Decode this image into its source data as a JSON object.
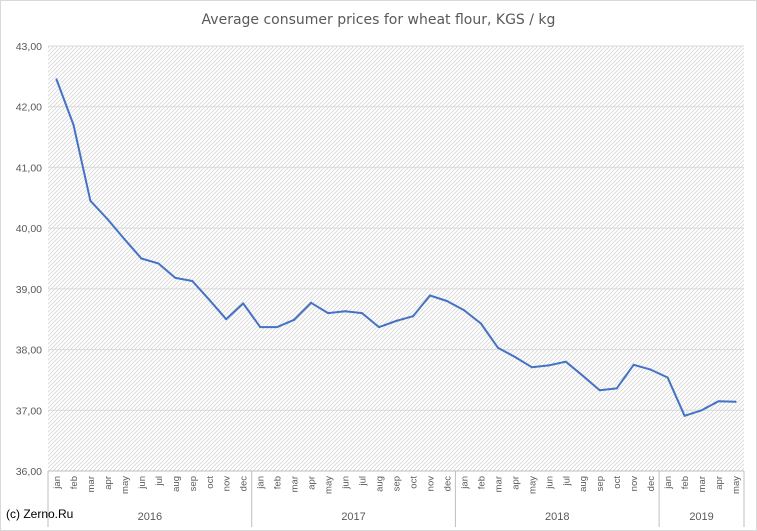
{
  "chart_data": {
    "type": "line",
    "title": "Average consumer prices for wheat flour, KGS / kg",
    "xlabel": "",
    "ylabel": "",
    "ylim": [
      36.0,
      43.0
    ],
    "y_ticks": [
      "36,00",
      "37,00",
      "38,00",
      "39,00",
      "40,00",
      "41,00",
      "42,00",
      "43,00"
    ],
    "grid": true,
    "legend": "none",
    "line_color": "#4472c4",
    "years": [
      {
        "label": "2016",
        "months": 12
      },
      {
        "label": "2017",
        "months": 12
      },
      {
        "label": "2018",
        "months": 12
      },
      {
        "label": "2019",
        "months": 5
      }
    ],
    "categories": [
      "jan",
      "feb",
      "mar",
      "apr",
      "may",
      "jun",
      "jul",
      "aug",
      "sep",
      "oct",
      "nov",
      "dec",
      "jan",
      "feb",
      "mar",
      "apr",
      "may",
      "jun",
      "jul",
      "aug",
      "sep",
      "oct",
      "nov",
      "dec",
      "jan",
      "feb",
      "mar",
      "apr",
      "may",
      "jun",
      "jul",
      "aug",
      "sep",
      "oct",
      "nov",
      "dec",
      "jan",
      "feb",
      "mar",
      "apr",
      "may"
    ],
    "series": [
      {
        "values": [
          42.45,
          41.7,
          40.45,
          40.15,
          39.82,
          39.5,
          39.42,
          39.18,
          39.13,
          38.82,
          38.5,
          38.76,
          38.37,
          38.37,
          38.49,
          38.77,
          38.6,
          38.63,
          38.6,
          38.37,
          38.47,
          38.55,
          38.89,
          38.8,
          38.65,
          38.43,
          38.03,
          37.88,
          37.71,
          37.74,
          37.8,
          37.57,
          37.33,
          37.36,
          37.75,
          37.67,
          37.54,
          36.91,
          37.0,
          37.15,
          37.14
        ]
      }
    ]
  },
  "footer": {
    "copyright": "(c) Zerno.Ru"
  }
}
